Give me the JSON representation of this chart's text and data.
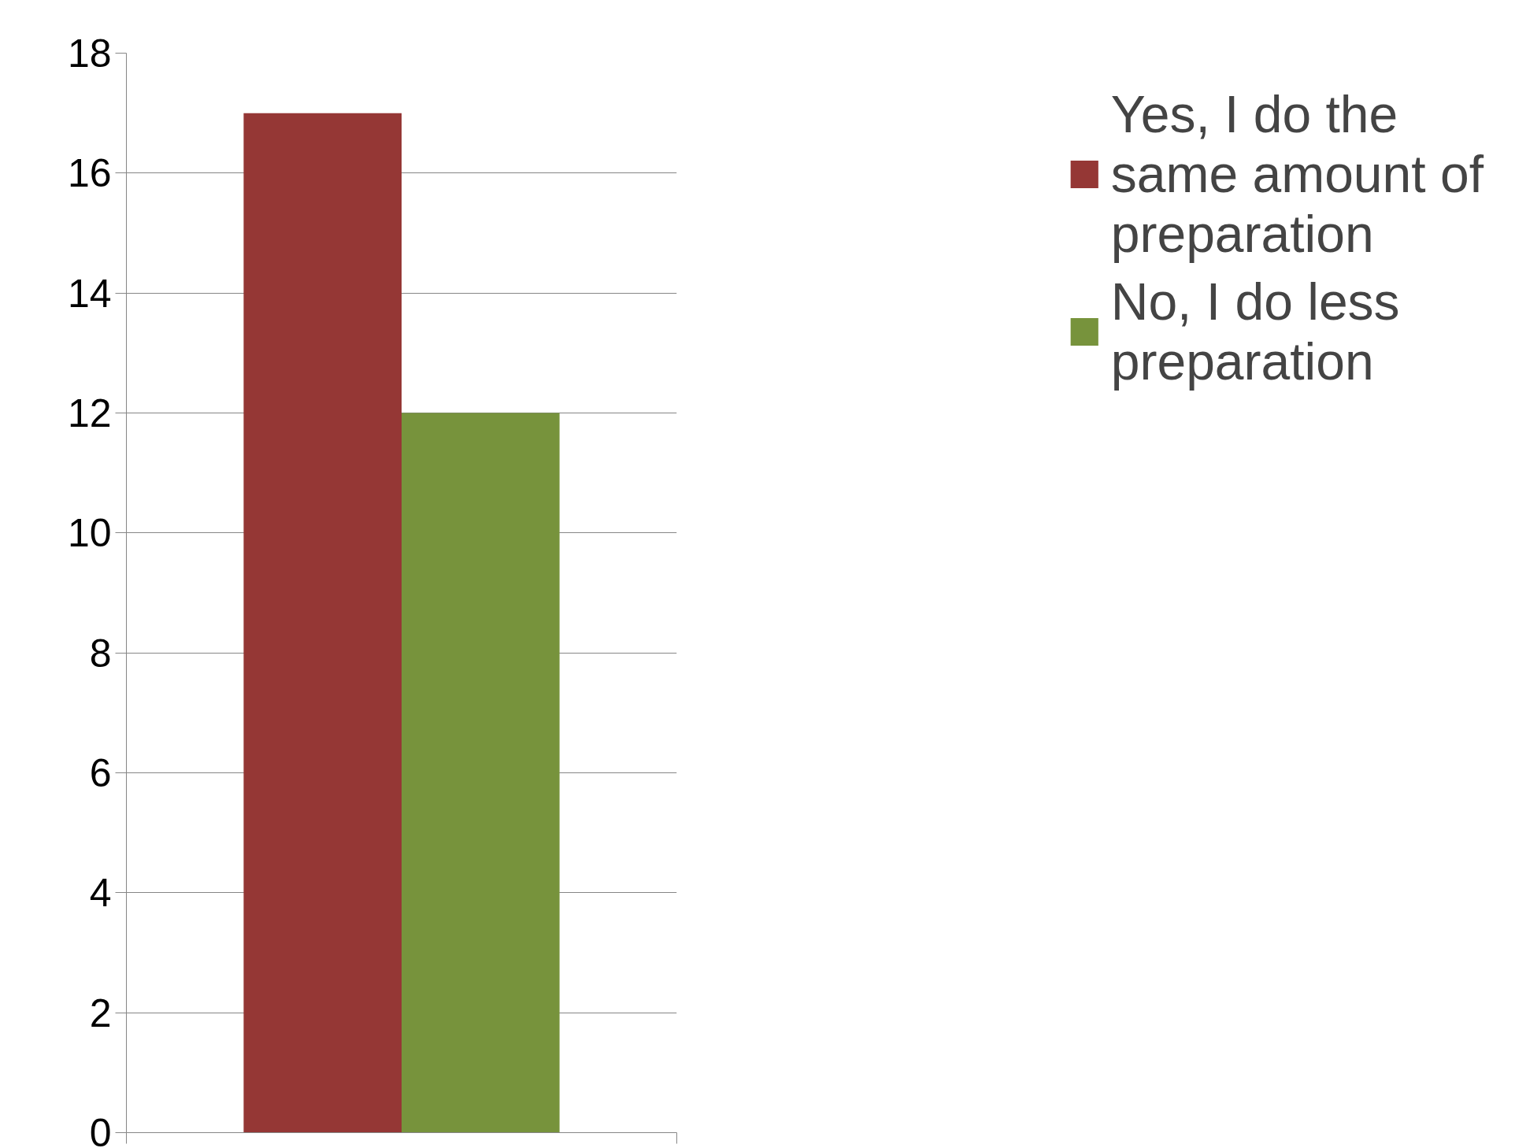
{
  "chart_data": {
    "type": "bar",
    "categories": [
      null
    ],
    "series": [
      {
        "name": "Yes, I do the same amount of preparation",
        "color": "#953735",
        "values": [
          17
        ]
      },
      {
        "name": "No, I do less preparation",
        "color": "#77933c",
        "values": [
          12
        ]
      }
    ],
    "ylim": [
      0,
      18
    ],
    "yticks": [
      0,
      2,
      4,
      6,
      8,
      10,
      12,
      14,
      16,
      18
    ],
    "grid": "y",
    "legend": "right"
  }
}
